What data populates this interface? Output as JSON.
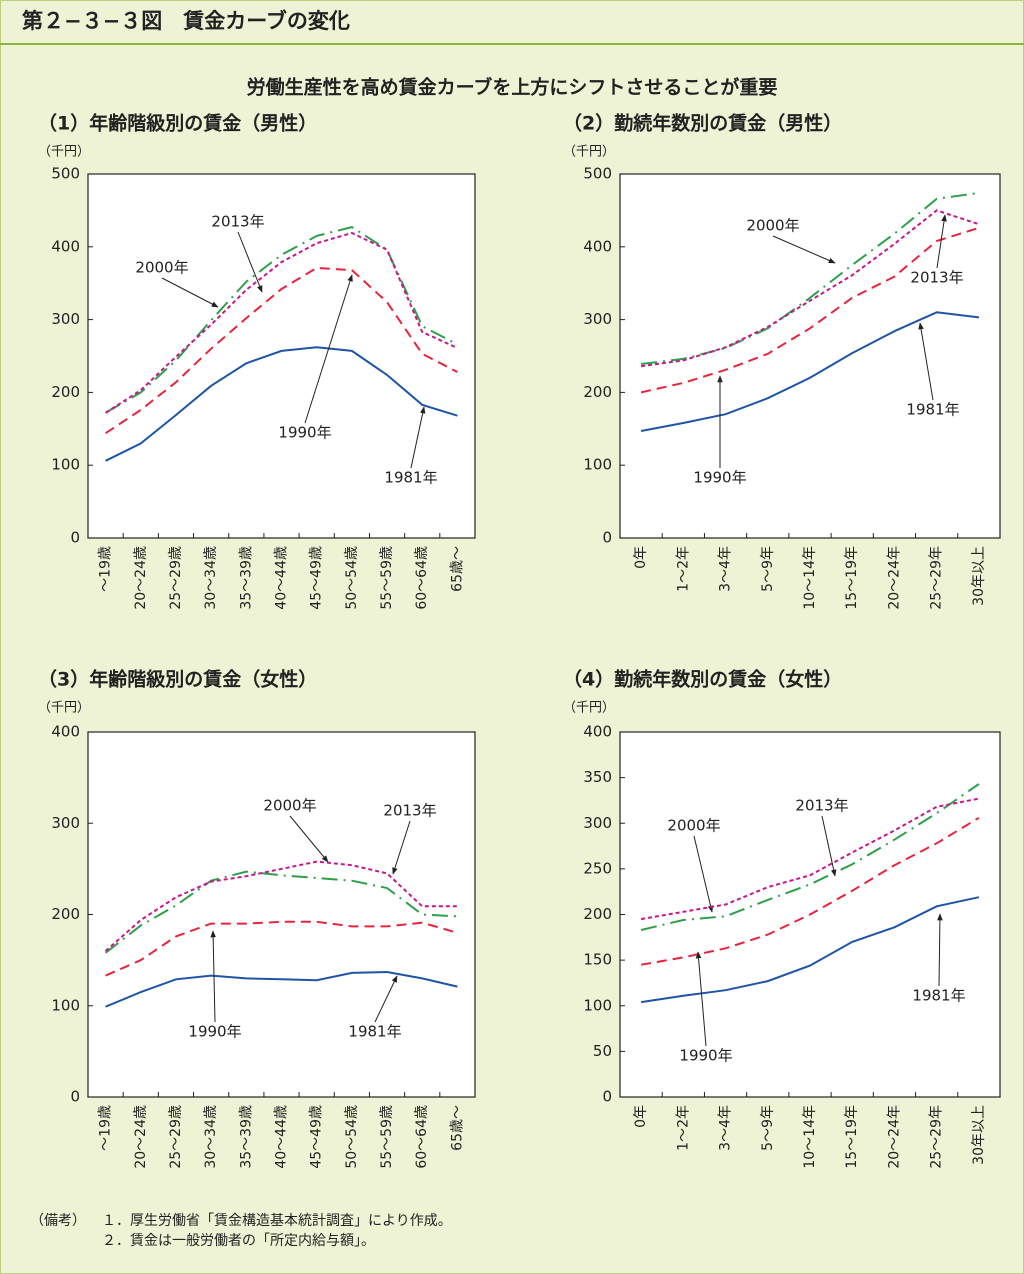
{
  "header": {
    "title": "第２−３−３図　賃金カーブの変化",
    "subtitle": "労働生産性を高め賃金カーブを上方にシフトさせることが重要"
  },
  "chart_data": [
    {
      "type": "line",
      "title": "（1）年齢階級別の賃金（男性）",
      "y_unit": "（千円）",
      "categories": [
        "～19歳",
        "20～24歳",
        "25～29歳",
        "30～34歳",
        "35～39歳",
        "40～44歳",
        "45～49歳",
        "50～54歳",
        "55～59歳",
        "60～64歳",
        "65歳～"
      ],
      "ylim": [
        0,
        500
      ],
      "yticks": [
        0,
        100,
        200,
        300,
        400,
        500
      ],
      "series": [
        {
          "name": "1981年",
          "color": "#1f55a6",
          "dash": "solid",
          "values": [
            106,
            130,
            169,
            209,
            240,
            257,
            262,
            257,
            224,
            183,
            168
          ]
        },
        {
          "name": "1990年",
          "color": "#e8243c",
          "dash": "dashed",
          "values": [
            144,
            176,
            214,
            260,
            302,
            342,
            371,
            368,
            324,
            253,
            228
          ]
        },
        {
          "name": "2000年",
          "color": "#2ea04a",
          "dash": "dash-dot",
          "values": [
            172,
            200,
            244,
            299,
            352,
            389,
            415,
            427,
            396,
            291,
            266
          ]
        },
        {
          "name": "2013年",
          "color": "#c8168e",
          "dash": "dotted",
          "values": [
            172,
            203,
            249,
            293,
            341,
            379,
            405,
            419,
            396,
            283,
            261
          ]
        }
      ]
    },
    {
      "type": "line",
      "title": "（2）勤続年数別の賃金（男性）",
      "y_unit": "（千円）",
      "categories": [
        "0年",
        "1～2年",
        "3～4年",
        "5～9年",
        "10～14年",
        "15～19年",
        "20～24年",
        "25～29年",
        "30年以上"
      ],
      "ylim": [
        0,
        500
      ],
      "yticks": [
        0,
        100,
        200,
        300,
        400,
        500
      ],
      "series": [
        {
          "name": "1981年",
          "color": "#1f55a6",
          "dash": "solid",
          "values": [
            147,
            158,
            170,
            192,
            220,
            254,
            284,
            310,
            303
          ]
        },
        {
          "name": "1990年",
          "color": "#e8243c",
          "dash": "dashed",
          "values": [
            200,
            213,
            231,
            253,
            288,
            330,
            359,
            408,
            426
          ]
        },
        {
          "name": "2000年",
          "color": "#2ea04a",
          "dash": "dash-dot",
          "values": [
            239,
            246,
            261,
            288,
            330,
            375,
            418,
            466,
            474
          ]
        },
        {
          "name": "2013年",
          "color": "#c8168e",
          "dash": "dotted",
          "values": [
            236,
            244,
            262,
            290,
            326,
            361,
            404,
            450,
            431
          ]
        }
      ]
    },
    {
      "type": "line",
      "title": "（3）年齢階級別の賃金（女性）",
      "y_unit": "（千円）",
      "categories": [
        "～19歳",
        "20～24歳",
        "25～29歳",
        "30～34歳",
        "35～39歳",
        "40～44歳",
        "45～49歳",
        "50～54歳",
        "55～59歳",
        "60～64歳",
        "65歳～"
      ],
      "ylim": [
        0,
        400
      ],
      "yticks": [
        0,
        100,
        200,
        300,
        400
      ],
      "series": [
        {
          "name": "1981年",
          "color": "#1f55a6",
          "dash": "solid",
          "values": [
            99,
            115,
            129,
            133,
            130,
            129,
            128,
            136,
            137,
            130,
            121
          ]
        },
        {
          "name": "1990年",
          "color": "#e8243c",
          "dash": "dashed",
          "values": [
            133,
            150,
            176,
            190,
            190,
            192,
            192,
            187,
            187,
            191,
            180
          ]
        },
        {
          "name": "2000年",
          "color": "#2ea04a",
          "dash": "dash-dot",
          "values": [
            158,
            188,
            210,
            237,
            247,
            243,
            240,
            237,
            229,
            200,
            198
          ]
        },
        {
          "name": "2013年",
          "color": "#c8168e",
          "dash": "dotted",
          "values": [
            160,
            194,
            219,
            236,
            242,
            250,
            258,
            254,
            245,
            209,
            209
          ]
        }
      ]
    },
    {
      "type": "line",
      "title": "（4）勤続年数別の賃金（女性）",
      "y_unit": "（千円）",
      "categories": [
        "0年",
        "1～2年",
        "3～4年",
        "5～9年",
        "10～14年",
        "15～19年",
        "20～24年",
        "25～29年",
        "30年以上"
      ],
      "ylim": [
        0,
        400
      ],
      "yticks": [
        0,
        50,
        100,
        150,
        200,
        250,
        300,
        350,
        400
      ],
      "series": [
        {
          "name": "1981年",
          "color": "#1f55a6",
          "dash": "solid",
          "values": [
            104,
            111,
            117,
            127,
            144,
            170,
            186,
            209,
            219
          ]
        },
        {
          "name": "1990年",
          "color": "#e8243c",
          "dash": "dashed",
          "values": [
            145,
            153,
            163,
            178,
            200,
            226,
            254,
            278,
            306
          ]
        },
        {
          "name": "2000年",
          "color": "#2ea04a",
          "dash": "dash-dot",
          "values": [
            183,
            194,
            198,
            216,
            233,
            255,
            282,
            311,
            343
          ]
        },
        {
          "name": "2013年",
          "color": "#c8168e",
          "dash": "dotted",
          "values": [
            195,
            203,
            211,
            230,
            243,
            268,
            292,
            318,
            327
          ]
        }
      ]
    }
  ],
  "notes": {
    "label": "（備考）",
    "items": [
      "１．厚生労働省「賃金構造基本統計調査」により作成。",
      "２．賃金は一般労働者の「所定内給与額」。"
    ]
  }
}
